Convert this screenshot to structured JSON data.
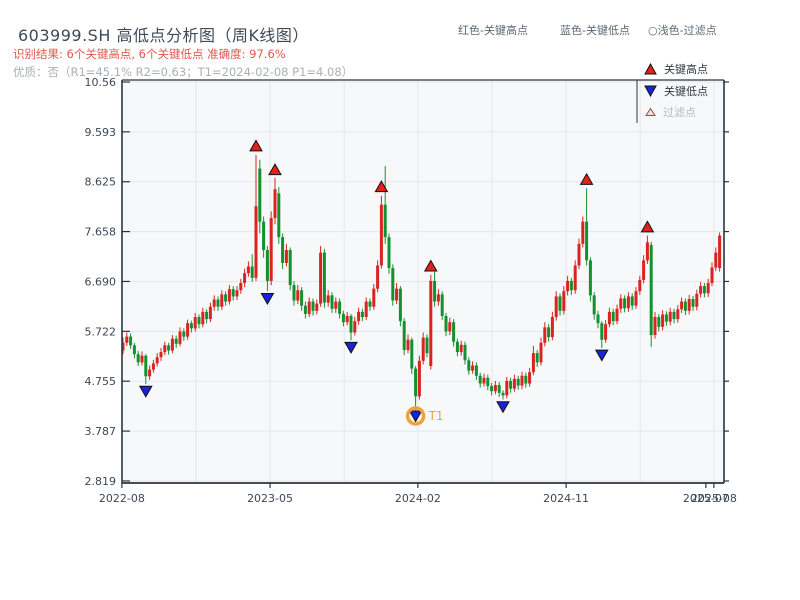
{
  "header": {
    "title": "603999.SH 高低点分析图（周K线图）",
    "note_red": "识别结果: 6个关键高点, 6个关键低点  准确度: 97.6%",
    "note_gray": "优质：否（R1=45.1%  R2=0.63；T1=2024-02-08 P1=4.08）"
  },
  "top_legend": {
    "high_label": "红色-关键高点",
    "low_label": "蓝色-关键低点",
    "filtered_icon": "○",
    "filtered_label": "浅色-过滤点"
  },
  "box_legend": {
    "high": "关键高点",
    "low": "关键低点",
    "filtered": "过滤点"
  },
  "colors": {
    "up": "#d92422",
    "down": "#13912e",
    "key_high": "#e32119",
    "key_low": "#1722d9",
    "marker_edge": "#111111",
    "filtered_fill": "#f8e0d8",
    "filtered_edge": "#8a5148",
    "t1": "#f0a138",
    "grid": "#e4e7ea",
    "spine": "#2a3542",
    "plot_bg": "#f7f8fa",
    "tick_label": "#3c4754",
    "title": "#3f4a57",
    "note_red": "#e2574e",
    "note_gray": "#a9b0b8",
    "legend_text": "#2e3944",
    "legend_muted": "#b4bac0",
    "top_legend_text": "#5d6874"
  },
  "chart_data": {
    "type": "candlestick",
    "title": "603999.SH 高低点分析图（周K线图）",
    "x_unit": "week",
    "y_ticks": [
      {
        "label": "10.56",
        "value": 10.56
      },
      {
        "label": "9.593",
        "value": 9.593
      },
      {
        "label": "8.625",
        "value": 8.625
      },
      {
        "label": "7.658",
        "value": 7.658
      },
      {
        "label": "6.690",
        "value": 6.69
      },
      {
        "label": "5.722",
        "value": 5.722
      },
      {
        "label": "4.755",
        "value": 4.755
      },
      {
        "label": "3.787",
        "value": 3.787
      },
      {
        "label": "2.819",
        "value": 2.819
      }
    ],
    "x_ticks": [
      {
        "label": "2022-08",
        "week": -0.3
      },
      {
        "label": "2023-05",
        "week": 38.7
      },
      {
        "label": "2024-02",
        "week": 77.6
      },
      {
        "label": "2024-11",
        "week": 116.6
      },
      {
        "label": "2025-07",
        "week": 153.4
      },
      {
        "label": "2025-08",
        "week": 155.5
      }
    ],
    "v_grid_weeks": [
      19.2,
      38.7,
      58.2,
      77.6,
      97.1,
      116.6,
      136.1,
      155.5
    ],
    "candles_format": [
      "open",
      "high",
      "low",
      "close"
    ],
    "candles": [
      [
        5.35,
        5.6,
        5.28,
        5.5
      ],
      [
        5.5,
        5.7,
        5.44,
        5.62
      ],
      [
        5.62,
        5.68,
        5.38,
        5.45
      ],
      [
        5.45,
        5.5,
        5.2,
        5.28
      ],
      [
        5.28,
        5.34,
        5.05,
        5.12
      ],
      [
        5.12,
        5.33,
        5.06,
        5.25
      ],
      [
        5.25,
        5.28,
        4.7,
        4.85
      ],
      [
        4.85,
        5.06,
        4.78,
        4.98
      ],
      [
        4.98,
        5.17,
        4.92,
        5.1
      ],
      [
        5.1,
        5.3,
        5.04,
        5.22
      ],
      [
        5.22,
        5.4,
        5.15,
        5.32
      ],
      [
        5.32,
        5.52,
        5.26,
        5.45
      ],
      [
        5.45,
        5.5,
        5.27,
        5.35
      ],
      [
        5.35,
        5.65,
        5.3,
        5.58
      ],
      [
        5.58,
        5.64,
        5.4,
        5.48
      ],
      [
        5.48,
        5.8,
        5.43,
        5.72
      ],
      [
        5.72,
        5.78,
        5.54,
        5.62
      ],
      [
        5.62,
        5.95,
        5.56,
        5.88
      ],
      [
        5.88,
        5.93,
        5.7,
        5.78
      ],
      [
        5.78,
        6.08,
        5.72,
        6.0
      ],
      [
        6.0,
        6.05,
        5.78,
        5.86
      ],
      [
        5.86,
        6.18,
        5.8,
        6.1
      ],
      [
        6.1,
        6.15,
        5.88,
        5.96
      ],
      [
        5.96,
        6.28,
        5.9,
        6.2
      ],
      [
        6.2,
        6.42,
        6.12,
        6.34
      ],
      [
        6.34,
        6.4,
        6.12,
        6.2
      ],
      [
        6.2,
        6.52,
        6.14,
        6.44
      ],
      [
        6.44,
        6.5,
        6.22,
        6.3
      ],
      [
        6.3,
        6.62,
        6.24,
        6.54
      ],
      [
        6.54,
        6.6,
        6.32,
        6.4
      ],
      [
        6.4,
        6.6,
        6.33,
        6.52
      ],
      [
        6.52,
        6.74,
        6.45,
        6.66
      ],
      [
        6.66,
        6.94,
        6.58,
        6.85
      ],
      [
        6.85,
        7.08,
        6.78,
        6.98
      ],
      [
        6.98,
        7.22,
        6.68,
        6.76
      ],
      [
        6.76,
        9.14,
        6.7,
        8.15
      ],
      [
        8.88,
        9.05,
        7.62,
        7.85
      ],
      [
        7.85,
        7.95,
        7.15,
        7.3
      ],
      [
        7.3,
        7.38,
        6.5,
        6.7
      ],
      [
        6.7,
        8.05,
        6.62,
        7.92
      ],
      [
        7.92,
        8.7,
        7.8,
        8.48
      ],
      [
        8.4,
        8.52,
        7.42,
        7.55
      ],
      [
        7.55,
        7.62,
        6.93,
        7.05
      ],
      [
        7.05,
        7.42,
        6.98,
        7.3
      ],
      [
        7.3,
        7.35,
        6.52,
        6.62
      ],
      [
        6.62,
        6.7,
        6.22,
        6.32
      ],
      [
        6.32,
        6.62,
        6.25,
        6.52
      ],
      [
        6.52,
        6.58,
        6.12,
        6.22
      ],
      [
        6.22,
        6.3,
        5.97,
        6.06
      ],
      [
        6.06,
        6.38,
        6.0,
        6.3
      ],
      [
        6.3,
        6.36,
        6.03,
        6.12
      ],
      [
        6.12,
        6.34,
        6.05,
        6.26
      ],
      [
        6.26,
        7.38,
        6.2,
        7.25
      ],
      [
        7.25,
        7.32,
        6.18,
        6.28
      ],
      [
        6.28,
        6.52,
        6.2,
        6.42
      ],
      [
        6.42,
        6.48,
        6.08,
        6.16
      ],
      [
        6.16,
        6.38,
        6.08,
        6.3
      ],
      [
        6.3,
        6.36,
        5.97,
        6.06
      ],
      [
        6.06,
        6.12,
        5.82,
        5.9
      ],
      [
        5.9,
        6.1,
        5.84,
        6.02
      ],
      [
        6.02,
        6.06,
        5.55,
        5.7
      ],
      [
        5.7,
        6.0,
        5.64,
        5.92
      ],
      [
        5.92,
        6.18,
        5.85,
        6.1
      ],
      [
        6.1,
        6.16,
        5.92,
        6.0
      ],
      [
        6.0,
        6.38,
        5.94,
        6.3
      ],
      [
        6.3,
        6.36,
        6.12,
        6.2
      ],
      [
        6.2,
        6.64,
        6.14,
        6.55
      ],
      [
        6.55,
        7.1,
        6.48,
        7.0
      ],
      [
        7.0,
        8.35,
        6.94,
        8.18
      ],
      [
        8.18,
        8.93,
        7.42,
        7.55
      ],
      [
        7.55,
        7.62,
        6.84,
        6.95
      ],
      [
        6.95,
        7.02,
        6.22,
        6.32
      ],
      [
        6.32,
        6.66,
        6.25,
        6.55
      ],
      [
        6.55,
        6.6,
        5.82,
        5.92
      ],
      [
        5.92,
        5.98,
        5.26,
        5.36
      ],
      [
        5.36,
        5.66,
        5.3,
        5.56
      ],
      [
        5.56,
        5.6,
        4.9,
        5.0
      ],
      [
        5.0,
        5.05,
        4.08,
        4.46
      ],
      [
        4.46,
        5.25,
        4.4,
        5.15
      ],
      [
        5.15,
        5.7,
        5.08,
        5.6
      ],
      [
        5.6,
        5.66,
        5.22,
        5.3
      ],
      [
        5.05,
        6.82,
        4.98,
        6.7
      ],
      [
        6.7,
        6.88,
        6.2,
        6.3
      ],
      [
        6.3,
        6.54,
        6.22,
        6.44
      ],
      [
        6.44,
        6.5,
        5.94,
        6.02
      ],
      [
        6.02,
        6.08,
        5.63,
        5.72
      ],
      [
        5.72,
        5.99,
        5.65,
        5.9
      ],
      [
        5.9,
        5.96,
        5.43,
        5.52
      ],
      [
        5.52,
        5.58,
        5.24,
        5.32
      ],
      [
        5.32,
        5.54,
        5.25,
        5.46
      ],
      [
        5.46,
        5.52,
        5.08,
        5.16
      ],
      [
        5.16,
        5.22,
        4.88,
        4.96
      ],
      [
        4.96,
        5.14,
        4.9,
        5.06
      ],
      [
        5.06,
        5.12,
        4.78,
        4.86
      ],
      [
        4.86,
        4.92,
        4.63,
        4.71
      ],
      [
        4.71,
        4.9,
        4.65,
        4.82
      ],
      [
        4.82,
        4.88,
        4.58,
        4.66
      ],
      [
        4.66,
        4.72,
        4.48,
        4.56
      ],
      [
        4.56,
        4.76,
        4.5,
        4.68
      ],
      [
        4.68,
        4.74,
        4.45,
        4.53
      ],
      [
        4.53,
        4.58,
        4.4,
        4.48
      ],
      [
        4.48,
        4.84,
        4.42,
        4.76
      ],
      [
        4.76,
        4.82,
        4.53,
        4.61
      ],
      [
        4.61,
        4.88,
        4.55,
        4.8
      ],
      [
        4.8,
        4.86,
        4.59,
        4.67
      ],
      [
        4.67,
        4.94,
        4.6,
        4.86
      ],
      [
        4.86,
        4.92,
        4.63,
        4.71
      ],
      [
        4.71,
        5.01,
        4.65,
        4.93
      ],
      [
        4.93,
        5.44,
        4.87,
        5.3
      ],
      [
        5.3,
        5.36,
        5.03,
        5.12
      ],
      [
        5.12,
        5.6,
        5.06,
        5.5
      ],
      [
        5.5,
        5.9,
        5.43,
        5.8
      ],
      [
        5.8,
        5.86,
        5.52,
        5.61
      ],
      [
        5.61,
        6.1,
        5.55,
        6.0
      ],
      [
        6.0,
        6.5,
        5.93,
        6.4
      ],
      [
        6.4,
        6.46,
        6.03,
        6.12
      ],
      [
        6.12,
        6.6,
        6.05,
        6.5
      ],
      [
        6.5,
        6.8,
        6.42,
        6.7
      ],
      [
        6.7,
        6.76,
        6.43,
        6.52
      ],
      [
        6.52,
        7.1,
        6.45,
        7.0
      ],
      [
        7.0,
        7.52,
        6.93,
        7.42
      ],
      [
        7.42,
        7.95,
        7.35,
        7.85
      ],
      [
        7.85,
        8.5,
        7.0,
        7.1
      ],
      [
        7.1,
        7.16,
        6.3,
        6.42
      ],
      [
        6.42,
        6.48,
        5.95,
        6.05
      ],
      [
        6.05,
        6.12,
        5.78,
        5.88
      ],
      [
        5.88,
        5.92,
        5.4,
        5.56
      ],
      [
        5.56,
        5.94,
        5.5,
        5.86
      ],
      [
        5.86,
        6.18,
        5.8,
        6.1
      ],
      [
        6.1,
        6.16,
        5.84,
        5.92
      ],
      [
        5.92,
        6.24,
        5.86,
        6.16
      ],
      [
        6.16,
        6.44,
        6.08,
        6.36
      ],
      [
        6.36,
        6.42,
        6.09,
        6.17
      ],
      [
        6.17,
        6.48,
        6.1,
        6.4
      ],
      [
        6.4,
        6.46,
        6.14,
        6.22
      ],
      [
        6.22,
        6.58,
        6.16,
        6.5
      ],
      [
        6.5,
        6.8,
        6.43,
        6.72
      ],
      [
        6.72,
        7.2,
        6.65,
        7.1
      ],
      [
        7.1,
        7.58,
        7.03,
        7.45
      ],
      [
        7.4,
        7.46,
        5.42,
        5.65
      ],
      [
        5.65,
        6.1,
        5.58,
        6.0
      ],
      [
        6.0,
        6.06,
        5.72,
        5.81
      ],
      [
        5.81,
        6.13,
        5.74,
        6.05
      ],
      [
        6.05,
        6.11,
        5.83,
        5.91
      ],
      [
        5.91,
        6.18,
        5.84,
        6.1
      ],
      [
        6.1,
        6.16,
        5.88,
        5.96
      ],
      [
        5.96,
        6.23,
        5.89,
        6.15
      ],
      [
        6.15,
        6.38,
        6.08,
        6.3
      ],
      [
        6.3,
        6.36,
        6.04,
        6.12
      ],
      [
        6.12,
        6.43,
        6.05,
        6.35
      ],
      [
        6.35,
        6.41,
        6.12,
        6.2
      ],
      [
        6.2,
        6.53,
        6.13,
        6.45
      ],
      [
        6.45,
        6.68,
        6.38,
        6.6
      ],
      [
        6.6,
        6.66,
        6.38,
        6.46
      ],
      [
        6.46,
        6.74,
        6.39,
        6.66
      ],
      [
        6.66,
        7.06,
        6.6,
        6.96
      ],
      [
        6.96,
        7.35,
        6.89,
        7.25
      ],
      [
        6.95,
        7.64,
        6.88,
        7.58
      ]
    ],
    "key_highs": [
      {
        "week": 35,
        "price": 9.32
      },
      {
        "week": 40,
        "price": 8.86
      },
      {
        "week": 68,
        "price": 8.53
      },
      {
        "week": 81,
        "price": 6.99
      },
      {
        "week": 122,
        "price": 8.67
      },
      {
        "week": 138,
        "price": 7.75
      }
    ],
    "key_lows": [
      {
        "week": 6,
        "price": 4.56
      },
      {
        "week": 38,
        "price": 6.36
      },
      {
        "week": 60,
        "price": 5.41
      },
      {
        "week": 77,
        "price": 4.08
      },
      {
        "week": 100,
        "price": 4.26
      },
      {
        "week": 126,
        "price": 5.26
      }
    ],
    "t1_annotation": {
      "week": 77,
      "price": 4.08,
      "label": "T1"
    }
  }
}
